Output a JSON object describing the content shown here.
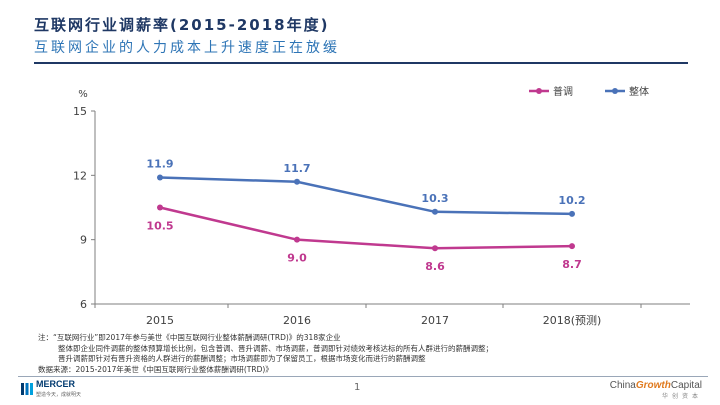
{
  "header": {
    "title": "互联网行业调薪率(2015-2018年度)",
    "subtitle": "互联网企业的人力成本上升速度正在放缓"
  },
  "chart_data": {
    "type": "line",
    "title": "",
    "xlabel": "",
    "ylabel": "%",
    "categories": [
      "2015",
      "2016",
      "2017",
      "2018(预测)"
    ],
    "ylim": [
      6,
      15
    ],
    "yticks": [
      "6",
      "9",
      "12",
      "15"
    ],
    "grid": false,
    "legend_position": "top-right",
    "series": [
      {
        "name": "普调",
        "values": [
          10.5,
          9.0,
          8.6,
          8.7
        ],
        "labels": [
          "10.5",
          "9.0",
          "8.6",
          "8.7"
        ],
        "color": "#c0398f"
      },
      {
        "name": "整体",
        "values": [
          11.9,
          11.7,
          10.3,
          10.2
        ],
        "labels": [
          "11.9",
          "11.7",
          "10.3",
          "10.2"
        ],
        "color": "#4a72b8"
      }
    ]
  },
  "notes": {
    "line1": "注：“互联网行业”即2017年参与美世《中国互联网行业整体薪酬调研(TRD)》的318家企业",
    "line2": "整体即企业同件调薪的整体预算增长比例，包含普调、晋升调薪、市场调薪，普调即针对绩效考核达标的所有人群进行的薪酬调整；",
    "line3": "晋升调薪即针对有晋升资格的人群进行的薪酬调整；市场调薪即为了保留员工，根据市场变化而进行的薪酬调整",
    "line4": "数据来源：2015-2017年美世《中国互联网行业整体薪酬调研(TRD)》"
  },
  "footer": {
    "page_number": "1",
    "left_brand": "MERCER",
    "left_tagline": "塑造今天，成就明天",
    "right_brand_pre": "China",
    "right_brand_mid": "Growth",
    "right_brand_post": "Capital",
    "right_brand_cn": "华创资本"
  }
}
